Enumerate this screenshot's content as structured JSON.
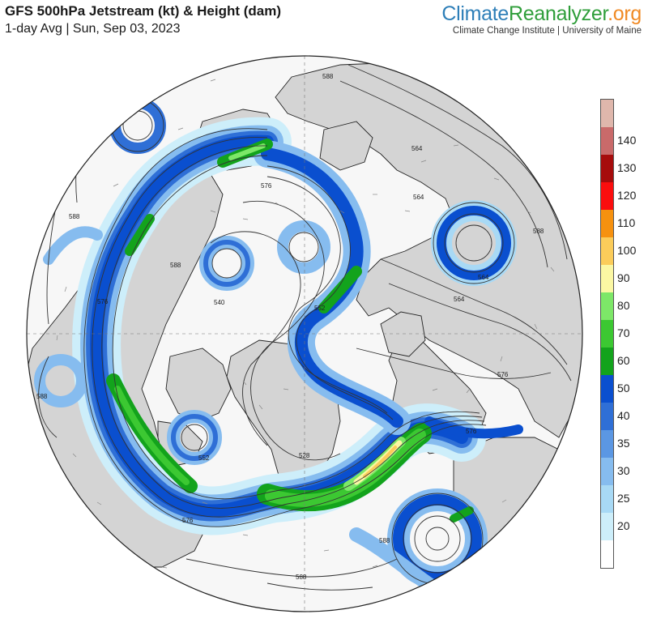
{
  "header": {
    "title": "GFS 500hPa Jetstream (kt) & Height (dam)",
    "subtitle": "1-day Avg | Sun, Sep 03, 2023"
  },
  "brand": {
    "name_part1": "Climate",
    "name_part2": "Reanalyzer",
    "name_part3": ".org",
    "tagline": "Climate Change Institute | University of Maine"
  },
  "legend": {
    "bins": [
      {
        "color": "#ffffff",
        "label": ""
      },
      {
        "color": "#cdeefa",
        "label": "20"
      },
      {
        "color": "#a8d9f5",
        "label": "25"
      },
      {
        "color": "#86bcef",
        "label": "30"
      },
      {
        "color": "#5b97e3",
        "label": "35"
      },
      {
        "color": "#2f6fd6",
        "label": "40"
      },
      {
        "color": "#0a4fcf",
        "label": "50"
      },
      {
        "color": "#13a31c",
        "label": "60"
      },
      {
        "color": "#3cc832",
        "label": "70"
      },
      {
        "color": "#7de768",
        "label": "80"
      },
      {
        "color": "#fbf7a3",
        "label": "90"
      },
      {
        "color": "#fbcc5a",
        "label": "100"
      },
      {
        "color": "#f6910f",
        "label": "110"
      },
      {
        "color": "#fb0e0e",
        "label": "120"
      },
      {
        "color": "#a60c0c",
        "label": "130"
      },
      {
        "color": "#c96a6a",
        "label": "140"
      },
      {
        "color": "#dfb7ac",
        "label": ""
      }
    ]
  },
  "map": {
    "ocean_color": "#f7f7f7",
    "land_color": "#d4d4d4",
    "contour_labels": [
      "588",
      "576",
      "564",
      "552",
      "540",
      "528",
      "588",
      "576",
      "564",
      "588",
      "576",
      "564",
      "588",
      "576",
      "588",
      "564",
      "588",
      "552",
      "576",
      "588"
    ]
  }
}
